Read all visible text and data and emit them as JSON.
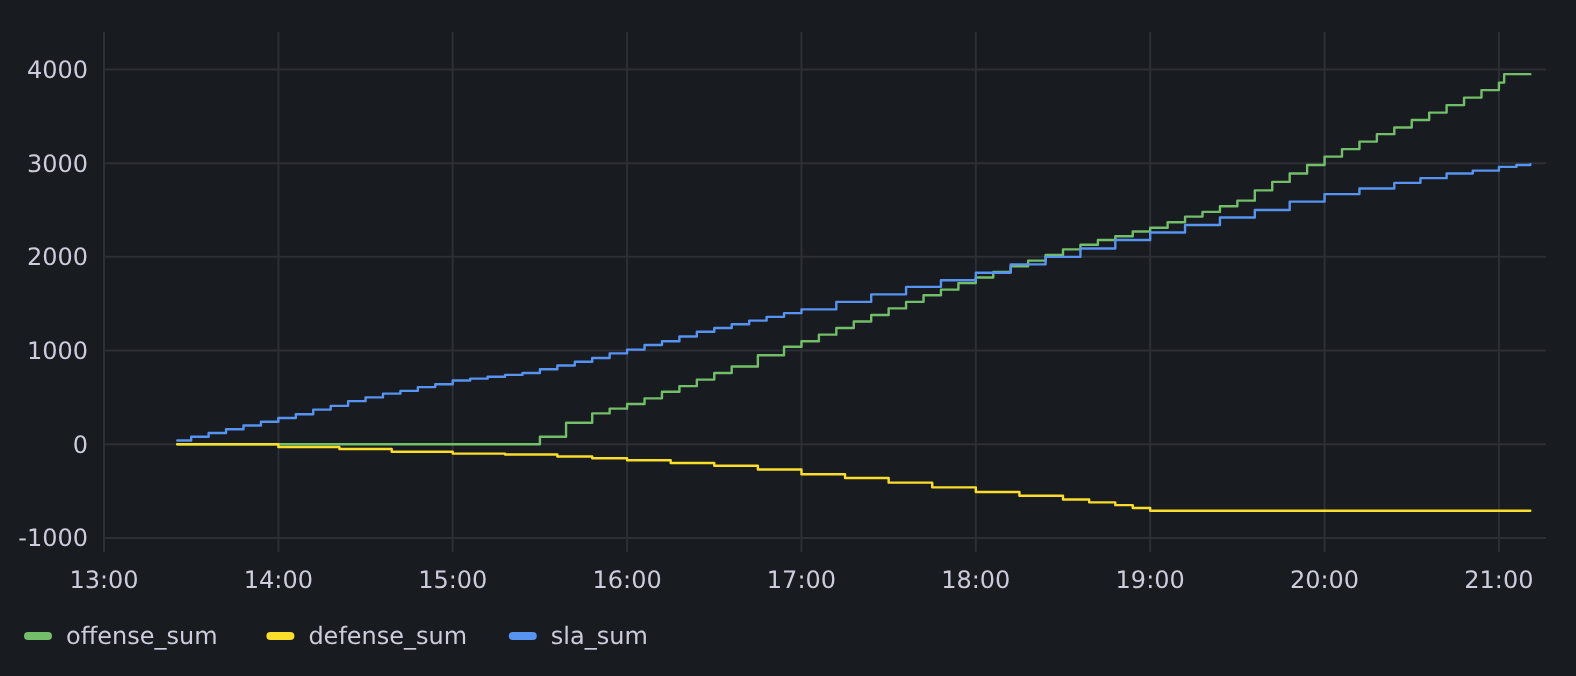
{
  "chart_data": {
    "type": "step",
    "xlim": [
      13,
      21.27
    ],
    "ylim": [
      -1150,
      4400
    ],
    "xticks": [
      {
        "value": 13,
        "label": "13:00"
      },
      {
        "value": 14,
        "label": "14:00"
      },
      {
        "value": 15,
        "label": "15:00"
      },
      {
        "value": 16,
        "label": "16:00"
      },
      {
        "value": 17,
        "label": "17:00"
      },
      {
        "value": 18,
        "label": "18:00"
      },
      {
        "value": 19,
        "label": "19:00"
      },
      {
        "value": 20,
        "label": "20:00"
      },
      {
        "value": 21,
        "label": "21:00"
      }
    ],
    "yticks": [
      -1000,
      0,
      1000,
      2000,
      3000,
      4000
    ],
    "grid": true,
    "legend": "bottom left",
    "line_style": "solid",
    "marker": "none",
    "series": [
      {
        "name": "offense_sum",
        "color": "#73bf69",
        "x": [
          13.42,
          15.5,
          15.65,
          15.8,
          15.9,
          16.0,
          16.1,
          16.2,
          16.3,
          16.4,
          16.5,
          16.6,
          16.75,
          16.9,
          17.0,
          17.1,
          17.2,
          17.3,
          17.4,
          17.5,
          17.6,
          17.7,
          17.8,
          17.9,
          18.0,
          18.1,
          18.2,
          18.3,
          18.4,
          18.5,
          18.6,
          18.7,
          18.8,
          18.9,
          19.0,
          19.1,
          19.2,
          19.3,
          19.4,
          19.5,
          19.6,
          19.7,
          19.8,
          19.9,
          20.0,
          20.1,
          20.2,
          20.3,
          20.4,
          20.5,
          20.6,
          20.7,
          20.8,
          20.9,
          21.0,
          21.03,
          21.18
        ],
        "values": [
          0,
          80,
          230,
          330,
          380,
          430,
          490,
          560,
          620,
          690,
          760,
          830,
          950,
          1040,
          1100,
          1170,
          1240,
          1310,
          1380,
          1450,
          1520,
          1590,
          1650,
          1720,
          1780,
          1840,
          1900,
          1960,
          2020,
          2080,
          2130,
          2180,
          2220,
          2270,
          2310,
          2370,
          2430,
          2480,
          2540,
          2600,
          2710,
          2800,
          2890,
          2980,
          3070,
          3150,
          3230,
          3310,
          3380,
          3460,
          3540,
          3620,
          3700,
          3780,
          3860,
          3950,
          3950
        ]
      },
      {
        "name": "defense_sum",
        "color": "#fade2a",
        "x": [
          13.42,
          14.0,
          14.35,
          14.65,
          15.0,
          15.3,
          15.6,
          15.8,
          16.0,
          16.25,
          16.5,
          16.75,
          17.0,
          17.25,
          17.5,
          17.75,
          18.0,
          18.25,
          18.5,
          18.65,
          18.8,
          18.9,
          19.0,
          21.18
        ],
        "values": [
          0,
          -30,
          -50,
          -80,
          -100,
          -110,
          -130,
          -150,
          -170,
          -200,
          -230,
          -270,
          -320,
          -360,
          -410,
          -460,
          -510,
          -550,
          -590,
          -620,
          -650,
          -680,
          -710,
          -710
        ]
      },
      {
        "name": "sla_sum",
        "color": "#5794f2",
        "x": [
          13.42,
          13.5,
          13.6,
          13.7,
          13.8,
          13.9,
          14.0,
          14.1,
          14.2,
          14.3,
          14.4,
          14.5,
          14.6,
          14.7,
          14.8,
          14.9,
          15.0,
          15.1,
          15.2,
          15.3,
          15.4,
          15.5,
          15.6,
          15.7,
          15.8,
          15.9,
          16.0,
          16.1,
          16.2,
          16.3,
          16.4,
          16.5,
          16.6,
          16.7,
          16.8,
          16.9,
          17.0,
          17.2,
          17.4,
          17.6,
          17.8,
          18.0,
          18.2,
          18.4,
          18.6,
          18.8,
          19.0,
          19.2,
          19.4,
          19.6,
          19.8,
          20.0,
          20.2,
          20.4,
          20.55,
          20.7,
          20.85,
          21.0,
          21.1,
          21.18
        ],
        "values": [
          40,
          80,
          120,
          160,
          200,
          240,
          280,
          320,
          370,
          410,
          460,
          500,
          540,
          570,
          610,
          640,
          680,
          700,
          720,
          740,
          760,
          800,
          840,
          880,
          920,
          970,
          1010,
          1060,
          1100,
          1150,
          1200,
          1240,
          1280,
          1320,
          1360,
          1400,
          1440,
          1520,
          1600,
          1680,
          1750,
          1830,
          1920,
          2000,
          2090,
          2180,
          2260,
          2340,
          2420,
          2500,
          2590,
          2670,
          2730,
          2790,
          2840,
          2890,
          2920,
          2960,
          2980,
          2990
        ]
      }
    ]
  }
}
